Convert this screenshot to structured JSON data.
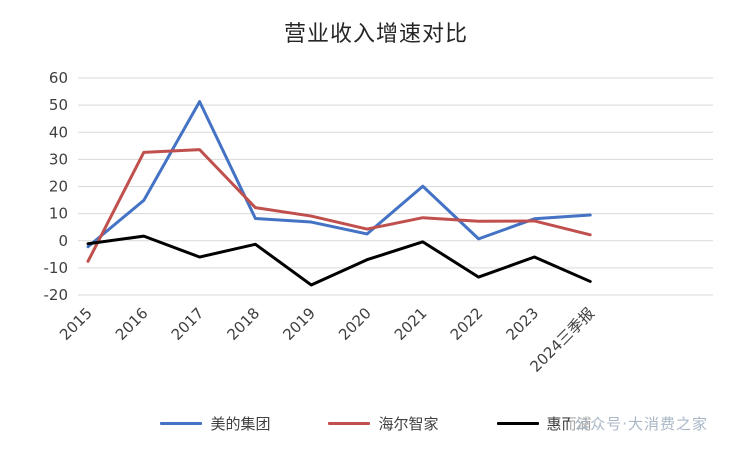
{
  "chart_data": {
    "type": "line",
    "title": "营业收入增速对比",
    "categories": [
      "2015",
      "2016",
      "2017",
      "2018",
      "2019",
      "2020",
      "2021",
      "2022",
      "2023",
      "2024三季报"
    ],
    "series": [
      {
        "name": "美的集团",
        "color": "#4472C4",
        "values": [
          -2.2,
          14.9,
          51.3,
          8.2,
          6.9,
          2.5,
          20.1,
          0.7,
          8.1,
          9.5
        ]
      },
      {
        "name": "海尔智家",
        "color": "#C0504D",
        "values": [
          -7.6,
          32.6,
          33.6,
          12.2,
          9.1,
          4.3,
          8.5,
          7.2,
          7.3,
          2.2
        ]
      },
      {
        "name": "惠而浦",
        "color": "#000000",
        "values": [
          -1.1,
          1.7,
          -6.0,
          -1.3,
          -16.3,
          -7.0,
          -0.4,
          -13.4,
          -6.0,
          -15.0
        ]
      }
    ],
    "ylim": [
      -20,
      60
    ],
    "yticks": [
      60,
      50,
      40,
      30,
      20,
      10,
      0,
      -10,
      -20
    ],
    "grid": true,
    "legend_position": "bottom",
    "gridline_color": "#D9D9D9",
    "axis_text_color": "#3F3F3F"
  },
  "watermark": {
    "text": "公众号·大消费之家"
  }
}
